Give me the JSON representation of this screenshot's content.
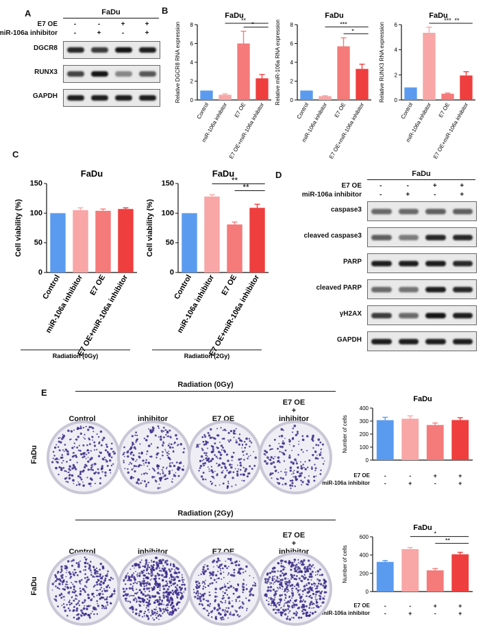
{
  "letters": {
    "a": "A",
    "b": "B",
    "c": "C",
    "d": "D",
    "e": "E"
  },
  "panel_a": {
    "title": "FaDu",
    "rows": [
      {
        "label": "E7 OE",
        "values": [
          "-",
          "-",
          "+",
          "+"
        ]
      },
      {
        "label": "miR-106a inhibitor",
        "values": [
          "-",
          "+",
          "-",
          "+"
        ]
      }
    ],
    "blots": [
      "DGCR8",
      "RUNX3",
      "GAPDH"
    ],
    "band_intensity": [
      [
        0.85,
        0.75,
        0.95,
        0.9
      ],
      [
        0.7,
        0.95,
        0.35,
        0.6
      ],
      [
        0.9,
        0.9,
        0.9,
        0.9
      ]
    ]
  },
  "panel_d": {
    "title": "FaDu",
    "rows": [
      {
        "label": "E7 OE",
        "values": [
          "-",
          "-",
          "+",
          "+"
        ]
      },
      {
        "label": "miR-106a inhibitor",
        "values": [
          "-",
          "+",
          "-",
          "+"
        ]
      }
    ],
    "blots": [
      "caspase3",
      "cleaved caspase3",
      "PARP",
      "cleaved PARP",
      "γH2AX",
      "GAPDH"
    ],
    "band_intensity": [
      [
        0.5,
        0.5,
        0.55,
        0.55
      ],
      [
        0.55,
        0.4,
        0.85,
        0.85
      ],
      [
        0.9,
        0.9,
        0.9,
        0.85
      ],
      [
        0.5,
        0.45,
        0.9,
        0.85
      ],
      [
        0.75,
        0.5,
        0.95,
        0.9
      ],
      [
        0.9,
        0.9,
        0.9,
        0.9
      ]
    ]
  },
  "panel_e": {
    "top_header": "Radiation (0Gy)",
    "bottom_header": "Radiation (2Gy)",
    "col_labels": [
      "Control",
      "inhibitor",
      "E7 OE",
      "E7 OE\n+\ninhibitor"
    ],
    "row_label": "FaDu",
    "plot_rows": [
      {
        "label": "E7 OE",
        "values": [
          "-",
          "-",
          "+",
          "+"
        ]
      },
      {
        "label": "miR-106a inhibitor",
        "values": [
          "-",
          "+",
          "-",
          "+"
        ]
      }
    ]
  },
  "chart_data": [
    {
      "id": "b1",
      "type": "bar",
      "title": "FaDu",
      "ylabel": "Relative DGCR8 RNA expression",
      "categories": [
        "Control",
        "miR-106a inhibitor",
        "E7 OE",
        "E7 OE+miR-106a inhibitor"
      ],
      "values": [
        1.0,
        0.55,
        6.0,
        2.3
      ],
      "errors": [
        0,
        0.1,
        1.3,
        0.4
      ],
      "ylim": [
        0,
        8
      ],
      "yticks": [
        0,
        2,
        4,
        6,
        8
      ],
      "colors": [
        "#5b9bef",
        "#f8a6a6",
        "#f57a7a",
        "#ef3e3e"
      ],
      "sig": [
        {
          "from": 2,
          "to": 3,
          "label": "*"
        },
        {
          "from": 1,
          "to": 3,
          "label": "**"
        }
      ]
    },
    {
      "id": "b2",
      "type": "bar",
      "title": "FaDu",
      "ylabel": "Relative miR-106a RNA expression",
      "categories": [
        "Control",
        "miR-106a inhibitor",
        "E7 OE",
        "E7 OE+miR-106a inhibitor"
      ],
      "values": [
        1.0,
        0.4,
        5.7,
        3.3
      ],
      "errors": [
        0,
        0.05,
        0.9,
        0.5
      ],
      "ylim": [
        0,
        8
      ],
      "yticks": [
        0,
        2,
        4,
        6,
        8
      ],
      "colors": [
        "#5b9bef",
        "#f8a6a6",
        "#f57a7a",
        "#ef3e3e"
      ],
      "sig": [
        {
          "from": 2,
          "to": 3,
          "label": "*"
        },
        {
          "from": 1,
          "to": 3,
          "label": "***"
        }
      ]
    },
    {
      "id": "b3",
      "type": "bar",
      "title": "FaDu",
      "ylabel": "Relative RUNX3 RNA expression",
      "categories": [
        "Control",
        "miR-106a inhibitor",
        "E7 OE",
        "E7 OE+miR-106a inhibitor"
      ],
      "values": [
        1.0,
        5.35,
        0.5,
        1.95
      ],
      "errors": [
        0,
        0.45,
        0.05,
        0.3
      ],
      "ylim": [
        0,
        6
      ],
      "yticks": [
        0,
        2,
        4,
        6
      ],
      "colors": [
        "#5b9bef",
        "#f8a6a6",
        "#f57a7a",
        "#ef3e3e"
      ],
      "sig": [
        {
          "from": 2,
          "to": 3,
          "label": "**"
        },
        {
          "from": 1,
          "to": 3,
          "label": "***"
        }
      ]
    },
    {
      "id": "c1",
      "type": "bar",
      "title": "FaDu",
      "ylabel": "Cell viability (%)",
      "categories": [
        "Control",
        "miR-106a inhibitor",
        "E7 OE",
        "E7 OE+miR-106a inhibitor"
      ],
      "values": [
        100,
        105,
        104,
        107
      ],
      "errors": [
        0,
        4,
        3,
        2
      ],
      "ylim": [
        0,
        150
      ],
      "yticks": [
        0,
        50,
        100,
        150
      ],
      "colors": [
        "#5b9bef",
        "#f8a6a6",
        "#f57a7a",
        "#ef3e3e"
      ],
      "sig": [],
      "footer": "Radiation (0Gy)"
    },
    {
      "id": "c2",
      "type": "bar",
      "title": "FaDu",
      "ylabel": "Cell viability (%)",
      "categories": [
        "Control",
        "miR-106a inhibitor",
        "E7 OE",
        "E7 OE+miR-106a inhibitor"
      ],
      "values": [
        100,
        128,
        81,
        109
      ],
      "errors": [
        0,
        3,
        4,
        6
      ],
      "ylim": [
        0,
        150
      ],
      "yticks": [
        0,
        50,
        100,
        150
      ],
      "colors": [
        "#5b9bef",
        "#f8a6a6",
        "#f57a7a",
        "#ef3e3e"
      ],
      "sig": [
        {
          "from": 2,
          "to": 3,
          "label": "**"
        },
        {
          "from": 1,
          "to": 3,
          "label": "**"
        }
      ],
      "footer": "Radiation (2Gy)"
    },
    {
      "id": "e1",
      "type": "bar",
      "title": "FaDu",
      "ylabel": "Number of cells",
      "categories": [
        "",
        "",
        "",
        ""
      ],
      "values": [
        307,
        318,
        270,
        308
      ],
      "errors": [
        22,
        22,
        15,
        18
      ],
      "ylim": [
        0,
        400
      ],
      "yticks": [
        0,
        100,
        200,
        300,
        400
      ],
      "colors": [
        "#5b9bef",
        "#f8a6a6",
        "#f57a7a",
        "#ef3e3e"
      ],
      "sig": []
    },
    {
      "id": "e2",
      "type": "bar",
      "title": "FaDu",
      "ylabel": "Number of cells",
      "categories": [
        "",
        "",
        "",
        ""
      ],
      "values": [
        325,
        465,
        232,
        408
      ],
      "errors": [
        15,
        18,
        20,
        22
      ],
      "ylim": [
        0,
        600
      ],
      "yticks": [
        0,
        200,
        400,
        600
      ],
      "colors": [
        "#5b9bef",
        "#f8a6a6",
        "#f57a7a",
        "#ef3e3e"
      ],
      "sig": [
        {
          "from": 2,
          "to": 3,
          "label": "**"
        },
        {
          "from": 1,
          "to": 3,
          "label": "*"
        }
      ]
    }
  ]
}
